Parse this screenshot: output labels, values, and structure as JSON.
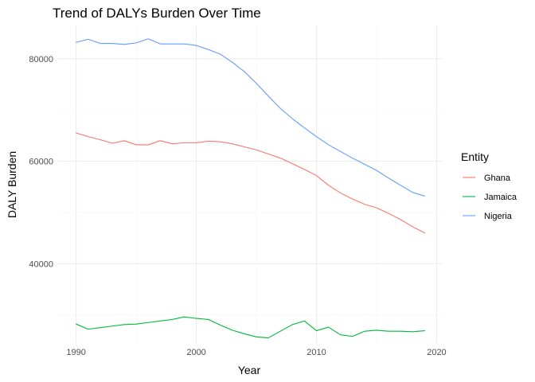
{
  "chart_data": {
    "type": "line",
    "title": "Trend of DALYs Burden Over Time",
    "xlabel": "Year",
    "ylabel": "DALY Burden",
    "xlim": [
      1988.5,
      2020.5
    ],
    "ylim": [
      24500,
      86500
    ],
    "x_ticks": [
      1990,
      2000,
      2010,
      2020
    ],
    "x_minor_ticks": [
      1995,
      2005,
      2015
    ],
    "y_ticks": [
      40000,
      60000,
      80000
    ],
    "y_tick_labels": [
      "40000",
      "60000",
      "80000"
    ],
    "y_minor_ticks": [
      30000,
      50000,
      70000
    ],
    "grid": true,
    "legend": {
      "title": "Entity",
      "position": "right"
    },
    "x": [
      1990,
      1991,
      1992,
      1993,
      1994,
      1995,
      1996,
      1997,
      1998,
      1999,
      2000,
      2001,
      2002,
      2003,
      2004,
      2005,
      2006,
      2007,
      2008,
      2009,
      2010,
      2011,
      2012,
      2013,
      2014,
      2015,
      2016,
      2017,
      2018,
      2019
    ],
    "series": [
      {
        "name": "Ghana",
        "color": "#F8766D",
        "values": [
          65500,
          64800,
          64200,
          63500,
          64000,
          63200,
          63200,
          64000,
          63400,
          63600,
          63600,
          63900,
          63800,
          63400,
          62800,
          62200,
          61400,
          60600,
          59500,
          58400,
          57200,
          55300,
          53800,
          52600,
          51600,
          50900,
          49800,
          48600,
          47200,
          46000
        ]
      },
      {
        "name": "Jamaica",
        "color": "#00BA38",
        "values": [
          28200,
          27200,
          27500,
          27800,
          28100,
          28200,
          28500,
          28800,
          29100,
          29600,
          29300,
          29100,
          28000,
          27000,
          26300,
          25700,
          25500,
          26800,
          28100,
          28800,
          26900,
          27600,
          26100,
          25800,
          26800,
          27000,
          26800,
          26800,
          26700,
          26900
        ]
      },
      {
        "name": "Nigeria",
        "color": "#619CFF",
        "values": [
          83200,
          83800,
          83000,
          83000,
          82800,
          83100,
          83900,
          82900,
          82900,
          82900,
          82600,
          81800,
          80900,
          79300,
          77500,
          75200,
          72700,
          70300,
          68300,
          66500,
          64800,
          63200,
          61900,
          60600,
          59400,
          58200,
          56700,
          55300,
          53900,
          53200
        ]
      }
    ]
  }
}
